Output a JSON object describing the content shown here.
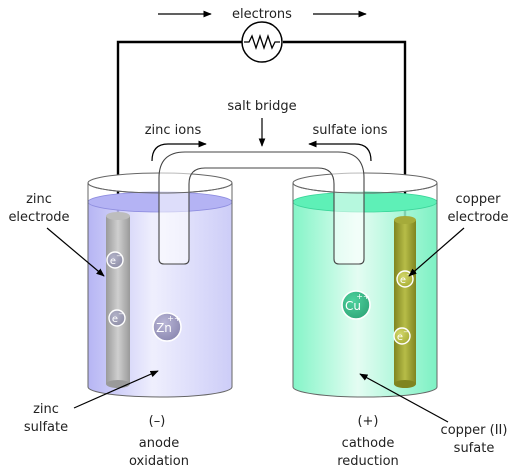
{
  "labels": {
    "electrons": "electrons",
    "salt_bridge": "salt bridge",
    "zinc_ions": "zinc ions",
    "sulfate_ions": "sulfate ions",
    "zinc_electrode_1": "zinc",
    "zinc_electrode_2": "electrode",
    "copper_electrode_1": "copper",
    "copper_electrode_2": "electrode",
    "zinc_sulfate_1": "zinc",
    "zinc_sulfate_2": "sulfate",
    "copper_sulfate_1": "copper (II)",
    "copper_sulfate_2": "sufate",
    "anode_sign": "(–)",
    "anode_1": "anode",
    "anode_2": "oxidation",
    "cathode_sign": "(+)",
    "cathode_1": "cathode",
    "cathode_2": "reduction"
  },
  "ions": {
    "electron": "e",
    "electron_charge": "−",
    "zinc": "Zn",
    "zinc_charge": "++",
    "copper": "Cu",
    "copper_charge": "++"
  },
  "colors": {
    "wire": "#111111",
    "zinc_solution": "#c3c3f7",
    "copper_solution": "#5ef0b7",
    "zinc_rod": "#a9a9a9",
    "copper_rod": "#8f9424",
    "zinc_ion": "#9d9ac0",
    "copper_ion": "#3cba8a"
  }
}
